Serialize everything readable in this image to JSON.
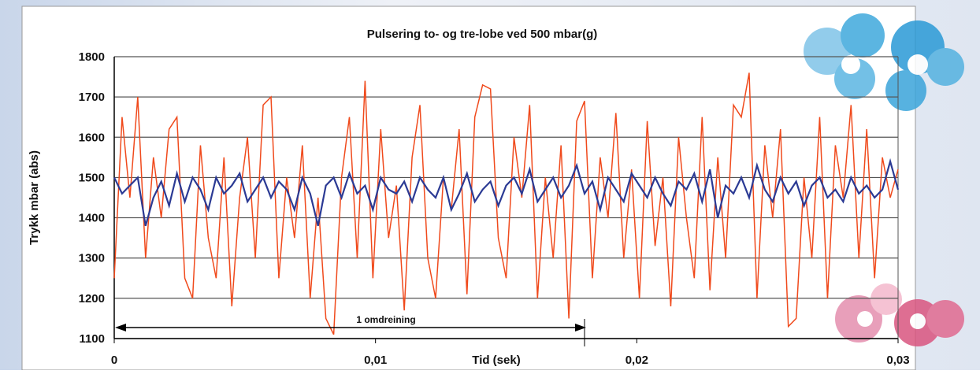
{
  "chart_data": {
    "type": "line",
    "title": "Pulsering to- og tre-lobe ved 500 mbar(g)",
    "x_label": "Tid (sek)",
    "y_label": "Trykk mbar (abs)",
    "annotation": "1 omdreining",
    "x": [
      0,
      0.0003,
      0.0006,
      0.0009,
      0.0012,
      0.0015,
      0.0018,
      0.0021,
      0.0024,
      0.0027,
      0.003,
      0.0033,
      0.0036,
      0.0039,
      0.0042,
      0.0045,
      0.0048,
      0.0051,
      0.0054,
      0.0057,
      0.006,
      0.0063,
      0.0066,
      0.0069,
      0.0072,
      0.0075,
      0.0078,
      0.0081,
      0.0084,
      0.0087,
      0.009,
      0.0093,
      0.0096,
      0.0099,
      0.0102,
      0.0105,
      0.0108,
      0.0111,
      0.0114,
      0.0117,
      0.012,
      0.0123,
      0.0126,
      0.0129,
      0.0132,
      0.0135,
      0.0138,
      0.0141,
      0.0144,
      0.0147,
      0.015,
      0.0153,
      0.0156,
      0.0159,
      0.0162,
      0.0165,
      0.0168,
      0.0171,
      0.0174,
      0.0177,
      0.018,
      0.0183,
      0.0186,
      0.0189,
      0.0192,
      0.0195,
      0.0198,
      0.0201,
      0.0204,
      0.0207,
      0.021,
      0.0213,
      0.0216,
      0.0219,
      0.0222,
      0.0225,
      0.0228,
      0.0231,
      0.0234,
      0.0237,
      0.024,
      0.0243,
      0.0246,
      0.0249,
      0.0252,
      0.0255,
      0.0258,
      0.0261,
      0.0264,
      0.0267,
      0.027,
      0.0273,
      0.0276,
      0.0279,
      0.0282,
      0.0285,
      0.0288,
      0.0291,
      0.0294,
      0.0297,
      0.03
    ],
    "series": [
      {
        "color": "#f04a1c",
        "values": [
          1250,
          1650,
          1450,
          1700,
          1300,
          1550,
          1400,
          1620,
          1650,
          1250,
          1200,
          1580,
          1350,
          1250,
          1550,
          1180,
          1450,
          1600,
          1300,
          1680,
          1700,
          1250,
          1500,
          1350,
          1580,
          1200,
          1450,
          1150,
          1110,
          1500,
          1650,
          1300,
          1740,
          1250,
          1620,
          1350,
          1480,
          1170,
          1550,
          1680,
          1300,
          1200,
          1500,
          1420,
          1620,
          1210,
          1650,
          1730,
          1720,
          1350,
          1250,
          1600,
          1450,
          1680,
          1200,
          1500,
          1300,
          1580,
          1150,
          1640,
          1690,
          1250,
          1550,
          1400,
          1660,
          1300,
          1520,
          1200,
          1640,
          1330,
          1500,
          1180,
          1600,
          1400,
          1250,
          1650,
          1220,
          1550,
          1300,
          1680,
          1650,
          1760,
          1200,
          1580,
          1400,
          1620,
          1130,
          1150,
          1500,
          1300,
          1650,
          1200,
          1580,
          1450,
          1680,
          1300,
          1620,
          1250,
          1550,
          1450,
          1520
        ]
      },
      {
        "color": "#2b3a94",
        "values": [
          1500,
          1460,
          1480,
          1500,
          1380,
          1450,
          1490,
          1430,
          1510,
          1440,
          1500,
          1470,
          1420,
          1500,
          1460,
          1480,
          1510,
          1440,
          1470,
          1500,
          1450,
          1490,
          1470,
          1420,
          1500,
          1460,
          1380,
          1480,
          1500,
          1450,
          1510,
          1460,
          1480,
          1420,
          1500,
          1470,
          1460,
          1490,
          1440,
          1500,
          1470,
          1450,
          1500,
          1420,
          1460,
          1510,
          1440,
          1470,
          1490,
          1430,
          1480,
          1500,
          1460,
          1520,
          1440,
          1470,
          1500,
          1450,
          1480,
          1530,
          1460,
          1490,
          1420,
          1500,
          1470,
          1440,
          1510,
          1480,
          1450,
          1500,
          1460,
          1430,
          1490,
          1470,
          1510,
          1440,
          1520,
          1400,
          1480,
          1460,
          1500,
          1450,
          1530,
          1470,
          1440,
          1500,
          1460,
          1490,
          1430,
          1480,
          1500,
          1450,
          1470,
          1440,
          1500,
          1460,
          1480,
          1450,
          1470,
          1540,
          1470
        ]
      }
    ],
    "xlim": [
      0,
      0.03
    ],
    "xticks": [
      0,
      {
        "value": 0.01,
        "label": "0,01"
      },
      {
        "value": 0.02,
        "label": "0,02"
      },
      {
        "value": 0.03,
        "label": "0,03"
      }
    ],
    "ylim": [
      1100,
      1800
    ],
    "yticks": [
      1100,
      1200,
      1300,
      1400,
      1500,
      1600,
      1700,
      1800
    ],
    "grid": true
  }
}
